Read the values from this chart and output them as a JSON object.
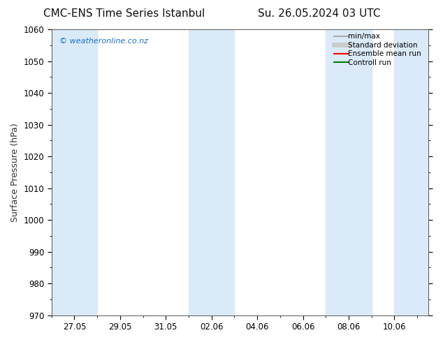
{
  "title_left": "CMC-ENS Time Series Istanbul",
  "title_right": "Su. 26.05.2024 03 UTC",
  "ylabel": "Surface Pressure (hPa)",
  "ylim": [
    970,
    1060
  ],
  "yticks": [
    970,
    980,
    990,
    1000,
    1010,
    1020,
    1030,
    1040,
    1050,
    1060
  ],
  "xtick_labels": [
    "27.05",
    "29.05",
    "31.05",
    "02.06",
    "04.06",
    "06.06",
    "08.06",
    "10.06"
  ],
  "background_color": "#ffffff",
  "plot_bg_color": "#ffffff",
  "shaded_band_color": "#daeaf8",
  "watermark_text": "© weatheronline.co.nz",
  "watermark_color": "#1a6fcc",
  "legend_entries": [
    {
      "label": "min/max",
      "color": "#aaaaaa",
      "lw": 1.5,
      "style": "solid"
    },
    {
      "label": "Standard deviation",
      "color": "#cccccc",
      "lw": 5,
      "style": "solid"
    },
    {
      "label": "Ensemble mean run",
      "color": "#ff0000",
      "lw": 1.5,
      "style": "solid"
    },
    {
      "label": "Controll run",
      "color": "#008000",
      "lw": 1.5,
      "style": "solid"
    }
  ],
  "title_fontsize": 11,
  "axis_fontsize": 9,
  "tick_fontsize": 8.5,
  "watermark_fontsize": 8
}
